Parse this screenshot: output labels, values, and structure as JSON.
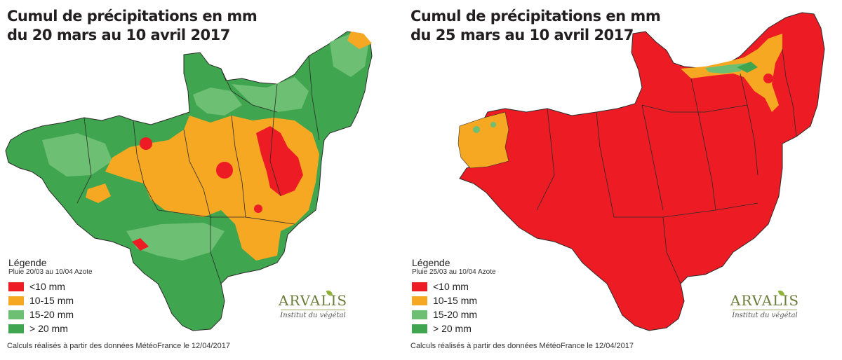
{
  "colors": {
    "lt10": "#ed1c24",
    "m10_15": "#f7a823",
    "m15_20": "#6cbf73",
    "gt20": "#3fa64f",
    "border": "#2a2a2a"
  },
  "panels": [
    {
      "title_line1": "Cumul de précipitations en mm",
      "title_line2": "du 20 mars au 10 avril 2017",
      "legend_title": "Légende",
      "legend_subtitle": "Pluie 20/03 au 10/04 Azote",
      "legend_items": [
        "<10 mm",
        "10-15 mm",
        "15-20 mm",
        "> 20 mm"
      ],
      "footnote": "Calculs réalisés à partir des données MétéoFrance le 12/04/2017",
      "logo_word": "ARVALIS",
      "logo_sub": "Institut du végétal"
    },
    {
      "title_line1": "Cumul de précipitations en mm",
      "title_line2": "du 25 mars au 10 avril 2017",
      "legend_title": "Légende",
      "legend_subtitle": "Pluie 25/03 au 10/04 Azote",
      "legend_items": [
        "<10 mm",
        "10-15 mm",
        "15-20 mm",
        "> 20 mm"
      ],
      "footnote": "Calculs réalisés à partir des données MétéoFrance le 12/04/2017",
      "logo_word": "ARVALIS",
      "logo_sub": "Institut du végétal"
    }
  ]
}
